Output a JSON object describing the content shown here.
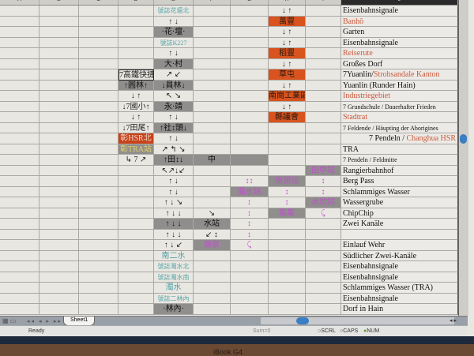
{
  "columns": [
    "A",
    "B",
    "C",
    "D",
    "E",
    "F",
    "G",
    "H",
    "I",
    "J"
  ],
  "selected_column": "J",
  "rows": [
    {
      "J": {
        "parts": [
          [
            "Eisenbahnsignale",
            "k"
          ]
        ]
      },
      "E": {
        "t": "號誌花壇北",
        "s": "t"
      },
      "H": {
        "t": "↓ ↑"
      }
    },
    {
      "J": {
        "parts": [
          [
            "Banhō",
            "r"
          ]
        ]
      },
      "E": {
        "t": "↑ ↓"
      },
      "H": {
        "t": "萬豐",
        "s": "o"
      }
    },
    {
      "J": {
        "parts": [
          [
            "Garten",
            "k"
          ]
        ]
      },
      "E": {
        "t": "·花·壇·",
        "s": "g"
      },
      "H": {
        "t": "↓ ↑"
      }
    },
    {
      "J": {
        "parts": [
          [
            "Eisenbahnsignale",
            "k"
          ]
        ]
      },
      "E": {
        "t": "號誌K227",
        "s": "t"
      },
      "H": {
        "t": "↓ ↑"
      }
    },
    {
      "J": {
        "parts": [
          [
            "Reiserute",
            "r"
          ]
        ]
      },
      "E": {
        "t": "↑ ↓"
      },
      "H": {
        "t": "稻豐",
        "s": "o"
      }
    },
    {
      "J": {
        "parts": [
          [
            "Großes Dorf",
            "k"
          ]
        ]
      },
      "E": {
        "t": "大·村",
        "s": "g"
      },
      "H": {
        "t": "↓ ↑"
      }
    },
    {
      "J": {
        "parts": [
          [
            "7Yuanlin/",
            "k"
          ],
          [
            "Strohsandale Kanton",
            "r"
          ]
        ]
      },
      "D": {
        "t": "7高鐵快捷",
        "s": "bx"
      },
      "E": {
        "t": "↗ ↙"
      },
      "H": {
        "t": "草屯",
        "s": "o"
      }
    },
    {
      "J": {
        "parts": [
          [
            "Yuanlin (Runder Hain)",
            "k"
          ]
        ]
      },
      "D": {
        "t": "↑圓林↑",
        "s": "g"
      },
      "E": {
        "t": "↓員林↓",
        "s": "g"
      },
      "H": {
        "t": "↓ ↑"
      }
    },
    {
      "J": {
        "parts": [
          [
            "Industriegebiet",
            "r"
          ]
        ]
      },
      "D": {
        "t": "↓ ↑"
      },
      "E": {
        "t": "↖ ↘"
      },
      "H": {
        "t": "南崗工業區",
        "s": "o"
      }
    },
    {
      "J": {
        "parts": [
          [
            "7 Grundschule / Dauerhafter Frieden",
            "k"
          ]
        ],
        "small": true
      },
      "D": {
        "t": "↓7國小↑"
      },
      "E": {
        "t": "永·靖",
        "s": "g"
      },
      "H": {
        "t": "↓ ↑"
      }
    },
    {
      "J": {
        "parts": [
          [
            "Stadtrat",
            "r"
          ]
        ]
      },
      "D": {
        "t": "↓ ↑"
      },
      "E": {
        "t": "↑ ↓"
      },
      "H": {
        "t": "縣議會",
        "s": "o"
      }
    },
    {
      "J": {
        "parts": [
          [
            "7 Feldende / Häupting der Aborigines",
            "k"
          ]
        ],
        "small": true
      },
      "D": {
        "t": "↓7田尾↑"
      },
      "E": {
        "t": "↑社↕頭↓",
        "s": "g"
      }
    },
    {
      "J": {
        "parts": [
          [
            "7 Pendeln / ",
            "k"
          ],
          [
            "Changhua HSR",
            "r"
          ]
        ],
        "right": true
      },
      "D": {
        "t": "彰HSR北",
        "s": "or"
      },
      "E": {
        "t": "↑ ↓"
      }
    },
    {
      "J": {
        "parts": [
          [
            "TRA",
            "k"
          ]
        ]
      },
      "D": {
        "t": "彰TRA站",
        "s": "gy"
      },
      "E": {
        "t": "↗ ↰ ↘"
      }
    },
    {
      "J": {
        "parts": [
          [
            "7 Pendeln / Feldmitte",
            "k"
          ]
        ],
        "small": true
      },
      "D": {
        "t": "↳ 7 ↗"
      },
      "E": {
        "t": "↑田↕↓",
        "s": "g"
      },
      "F": {
        "t": "中",
        "s": "g"
      },
      "G": {
        "t": "",
        "s": "g"
      }
    },
    {
      "J": {
        "parts": [
          [
            "Rangierbahnhof",
            "k"
          ]
        ]
      },
      "E": {
        "t": "↖↗↓↙"
      },
      "I": {
        "t": "田中站",
        "s": "gp"
      }
    },
    {
      "J": {
        "parts": [
          [
            "Berg Pass",
            "k"
          ]
        ]
      },
      "E": {
        "t": "↑ ↓"
      },
      "G": {
        "t": "↕↕",
        "s": "p"
      },
      "H": {
        "t": "嶺頭站",
        "s": "gp"
      },
      "I": {
        "t": "↕",
        "s": "p"
      }
    },
    {
      "J": {
        "parts": [
          [
            "Schlammiges Wasser",
            "k"
          ]
        ]
      },
      "E": {
        "t": "↑ ↓"
      },
      "G": {
        "t": "濁水站",
        "s": "gp"
      },
      "H": {
        "t": "↕",
        "s": "p"
      },
      "I": {
        "t": "↕",
        "s": "p"
      }
    },
    {
      "J": {
        "parts": [
          [
            "Wassergrube",
            "k"
          ]
        ]
      },
      "E": {
        "t": "↑ ↓ ↘"
      },
      "G": {
        "t": "↕",
        "s": "p"
      },
      "H": {
        "t": "↕",
        "s": "p"
      },
      "I": {
        "t": "水坑站",
        "s": "gp"
      }
    },
    {
      "J": {
        "parts": [
          [
            "ChipChip",
            "k"
          ]
        ]
      },
      "E": {
        "t": "↑ ↓ ↓"
      },
      "F": {
        "t": "↘"
      },
      "G": {
        "t": "↕",
        "s": "p"
      },
      "H": {
        "t": "集集",
        "s": "gp"
      },
      "I": {
        "t": "⤹",
        "s": "p"
      }
    },
    {
      "J": {
        "parts": [
          [
            "Zwei Kanäle",
            "k"
          ]
        ]
      },
      "E": {
        "t": "↑ ↓ ↓",
        "s": "g"
      },
      "F": {
        "t": "水站",
        "s": "g"
      },
      "G": {
        "t": "↕",
        "s": "p"
      }
    },
    {
      "J": {
        "parts": [
          [
            "",
            "k"
          ]
        ]
      },
      "E": {
        "t": "↑ ↓ ↓"
      },
      "F": {
        "t": "↙ ↕"
      },
      "G": {
        "t": "↕",
        "s": "p"
      }
    },
    {
      "J": {
        "parts": [
          [
            "Einlauf Wehr",
            "k"
          ]
        ]
      },
      "E": {
        "t": "↑ ↓ ↙"
      },
      "F": {
        "t": "源泉",
        "s": "gp"
      },
      "G": {
        "t": "⤹",
        "s": "p"
      }
    },
    {
      "J": {
        "parts": [
          [
            "Südlicher Zwei-Kanäle",
            "k"
          ]
        ]
      },
      "E": {
        "t": "南二水",
        "s": "tl"
      }
    },
    {
      "J": {
        "parts": [
          [
            "Eisenbahnsignale",
            "k"
          ]
        ]
      },
      "E": {
        "t": "號誌濁水北",
        "s": "t"
      }
    },
    {
      "J": {
        "parts": [
          [
            "Eisenbahnsignale",
            "k"
          ]
        ]
      },
      "E": {
        "t": "號誌濁水南",
        "s": "t"
      }
    },
    {
      "J": {
        "parts": [
          [
            "Schlammiges Wasser (TRA)",
            "k"
          ]
        ]
      },
      "E": {
        "t": "濁水",
        "s": "tl"
      }
    },
    {
      "J": {
        "parts": [
          [
            "Eisenbahnsignale",
            "k"
          ]
        ]
      },
      "E": {
        "t": "號誌二林內",
        "s": "t"
      }
    },
    {
      "J": {
        "parts": [
          [
            "Dorf in Hain",
            "k"
          ]
        ]
      },
      "E": {
        "t": "·林內·",
        "s": "g"
      }
    }
  ],
  "sheet_tab": "Sheet1",
  "status": {
    "ready": "Ready",
    "sum": "Sum=0",
    "scrl": "SCRL",
    "caps": "CAPS",
    "num": "NUM"
  },
  "brand": "iBook G4"
}
